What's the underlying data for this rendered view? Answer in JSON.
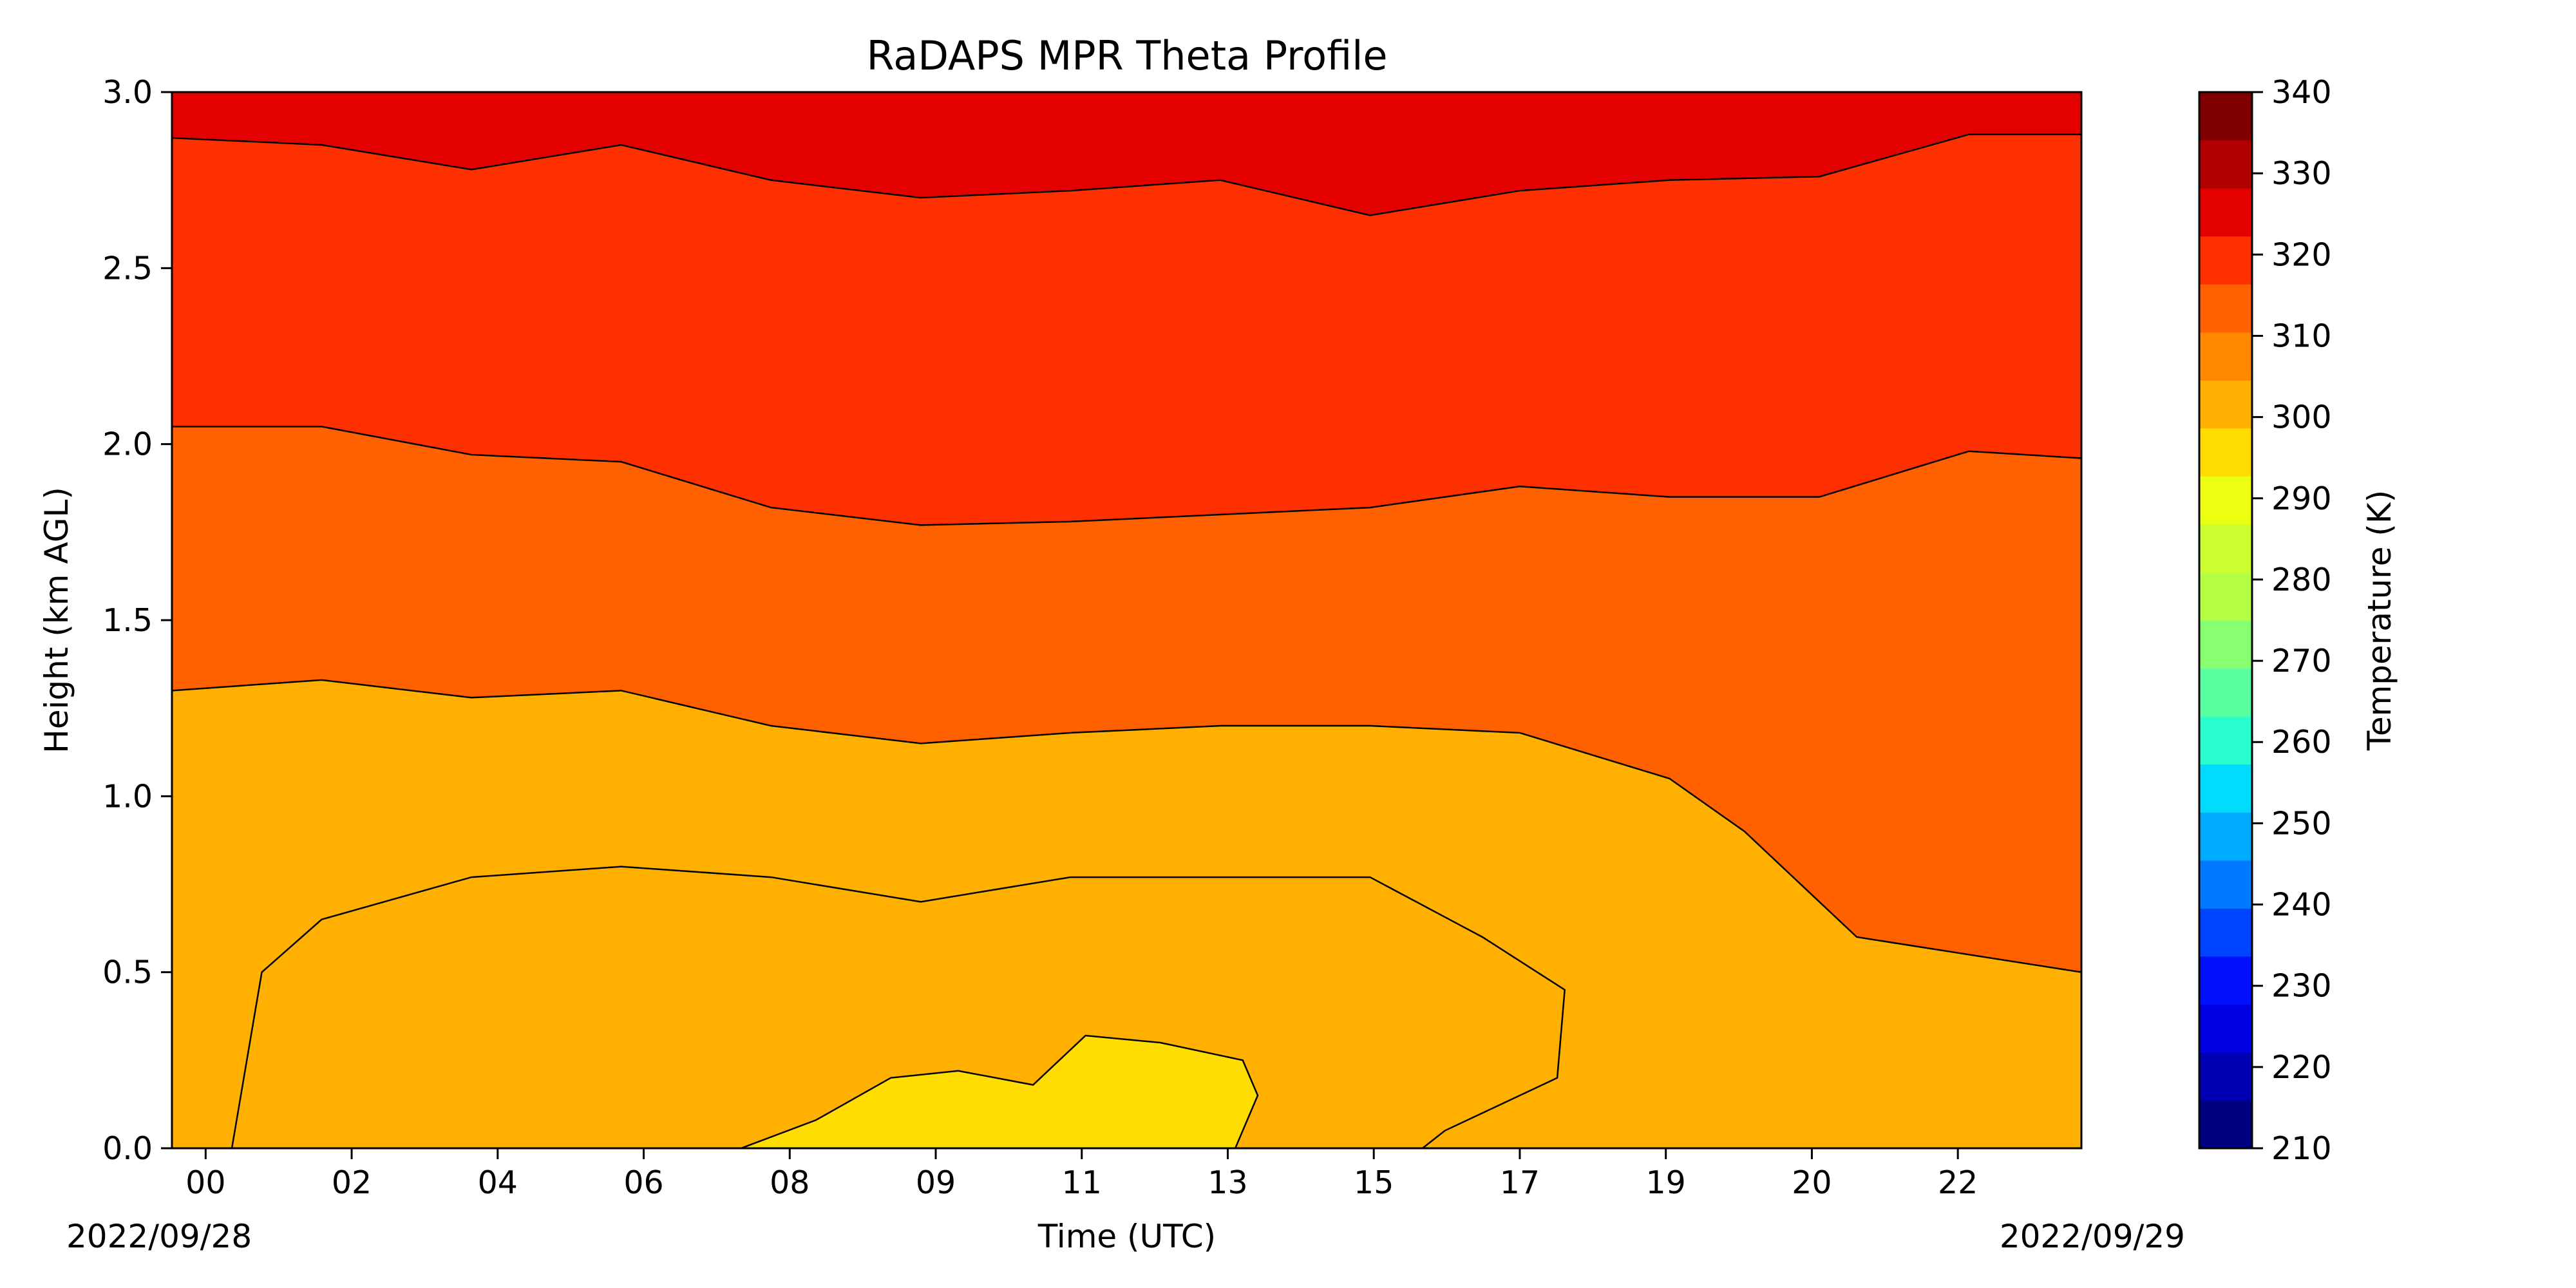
{
  "chart_data": {
    "type": "heatmap",
    "subtype": "filled-contour",
    "title": "RaDAPS MPR Theta Profile",
    "xlabel": "Time (UTC)",
    "ylabel": "Height (km AGL)",
    "x_tick_labels": [
      "00",
      "02",
      "04",
      "06",
      "08",
      "09",
      "11",
      "13",
      "15",
      "17",
      "19",
      "20",
      "22"
    ],
    "x_tick_hours": [
      0.45,
      2.4,
      4.35,
      6.3,
      8.25,
      10.2,
      12.15,
      14.1,
      16.05,
      18.0,
      19.95,
      21.9,
      23.85
    ],
    "x_range_hours": [
      0,
      25.5
    ],
    "start_date_label": "2022/09/28",
    "end_date_label": "2022/09/29",
    "y_ticks": [
      0.0,
      0.5,
      1.0,
      1.5,
      2.0,
      2.5,
      3.0
    ],
    "y_tick_labels": [
      "0.0",
      "0.5",
      "1.0",
      "1.5",
      "2.0",
      "2.5",
      "3.0"
    ],
    "ylim": [
      0,
      3
    ],
    "colorbar": {
      "label": "Temperature (K)",
      "min": 210,
      "max": 340,
      "step": 5,
      "ticks": [
        340,
        330,
        320,
        310,
        300,
        290,
        280,
        270,
        260,
        250,
        240,
        230,
        220,
        210
      ],
      "tick_labels": [
        "340",
        "330",
        "320",
        "310",
        "300",
        "290",
        "280",
        "270",
        "260",
        "250",
        "240",
        "230",
        "220",
        "210"
      ],
      "colors": [
        "#000080",
        "#0000b3",
        "#0000e5",
        "#0010ff",
        "#0044ff",
        "#0078ff",
        "#00acff",
        "#00dcfe",
        "#29ffce",
        "#5affa0",
        "#87ff70",
        "#b4ff43",
        "#ccff30",
        "#ecff10",
        "#ffdd00",
        "#ffb000",
        "#ff8800",
        "#ff6000",
        "#ff3000",
        "#e50000",
        "#b10000",
        "#800000"
      ]
    },
    "contour_levels_K": [
      285,
      290,
      295,
      300,
      305
    ],
    "contours": [
      {
        "level": 305,
        "height_km": [
          [
            0,
            2.87
          ],
          [
            2,
            2.85
          ],
          [
            4,
            2.78
          ],
          [
            6,
            2.85
          ],
          [
            8,
            2.75
          ],
          [
            10,
            2.7
          ],
          [
            12,
            2.72
          ],
          [
            14,
            2.75
          ],
          [
            16,
            2.65
          ],
          [
            18,
            2.72
          ],
          [
            20,
            2.75
          ],
          [
            22,
            2.76
          ],
          [
            24,
            2.88
          ],
          [
            25.5,
            2.88
          ]
        ]
      },
      {
        "level": 300,
        "height_km": [
          [
            0,
            2.05
          ],
          [
            2,
            2.05
          ],
          [
            4,
            1.97
          ],
          [
            6,
            1.95
          ],
          [
            8,
            1.82
          ],
          [
            10,
            1.77
          ],
          [
            12,
            1.78
          ],
          [
            14,
            1.8
          ],
          [
            16,
            1.82
          ],
          [
            18,
            1.88
          ],
          [
            20,
            1.85
          ],
          [
            22,
            1.85
          ],
          [
            24,
            1.98
          ],
          [
            25.5,
            1.96
          ]
        ]
      },
      {
        "level": 295,
        "height_km": [
          [
            0,
            1.3
          ],
          [
            2,
            1.33
          ],
          [
            4,
            1.28
          ],
          [
            6,
            1.3
          ],
          [
            8,
            1.2
          ],
          [
            10,
            1.15
          ],
          [
            12,
            1.18
          ],
          [
            14,
            1.2
          ],
          [
            16,
            1.2
          ],
          [
            18,
            1.18
          ],
          [
            20,
            1.05
          ],
          [
            21,
            0.9
          ],
          [
            22.5,
            0.6
          ],
          [
            25.5,
            0.5
          ]
        ]
      },
      {
        "level": 290,
        "height_km": [
          [
            0.8,
            0.0
          ],
          [
            1.2,
            0.5
          ],
          [
            2,
            0.65
          ],
          [
            4,
            0.77
          ],
          [
            6,
            0.8
          ],
          [
            8,
            0.77
          ],
          [
            10,
            0.7
          ],
          [
            12,
            0.77
          ],
          [
            14,
            0.77
          ],
          [
            16,
            0.77
          ],
          [
            17.5,
            0.6
          ],
          [
            18.6,
            0.45
          ],
          [
            18.5,
            0.2
          ],
          [
            17,
            0.05
          ],
          [
            16.7,
            0.0
          ]
        ]
      },
      {
        "level": 285,
        "height_km": [
          [
            7.6,
            0.0
          ],
          [
            8.6,
            0.08
          ],
          [
            9.6,
            0.2
          ],
          [
            10.5,
            0.22
          ],
          [
            11.5,
            0.18
          ],
          [
            12.2,
            0.32
          ],
          [
            13.2,
            0.3
          ],
          [
            14.3,
            0.25
          ],
          [
            14.5,
            0.15
          ],
          [
            14.2,
            0.0
          ]
        ]
      }
    ]
  }
}
